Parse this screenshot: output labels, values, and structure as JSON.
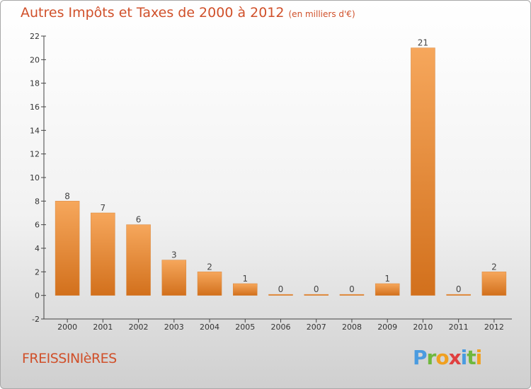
{
  "title": "Autres Impôts et Taxes de 2000 à 2012",
  "unit_label": "(en milliers d'€)",
  "commune": "FREISSINIèRES",
  "logo": {
    "letters": [
      "P",
      "r",
      "o",
      "x",
      "i",
      "t",
      "i"
    ],
    "colors": [
      "#4a9be0",
      "#6fb83d",
      "#f0a020",
      "#e04040",
      "#4a9be0",
      "#6fb83d",
      "#f0a020"
    ]
  },
  "colors": {
    "bar_light": "#f6a75c",
    "bar_dark": "#d2701c",
    "title": "#d0502a",
    "axis": "#444444"
  },
  "chart_data": {
    "type": "bar",
    "title": "Autres Impôts et Taxes de 2000 à 2012",
    "xlabel": "",
    "ylabel": "",
    "categories": [
      "2000",
      "2001",
      "2002",
      "2003",
      "2004",
      "2005",
      "2006",
      "2007",
      "2008",
      "2009",
      "2010",
      "2011",
      "2012"
    ],
    "values": [
      8,
      7,
      6,
      3,
      2,
      1,
      0,
      0,
      0,
      1,
      21,
      0,
      2
    ],
    "data_labels": [
      "8",
      "7",
      "6",
      "3",
      "2",
      "1",
      "0",
      "0",
      "0",
      "1",
      "21",
      "0",
      "2"
    ],
    "ylim": [
      -2,
      22
    ],
    "yticks": [
      "-2",
      "0",
      "2",
      "4",
      "6",
      "8",
      "10",
      "12",
      "14",
      "16",
      "18",
      "20",
      "22"
    ],
    "grid": false,
    "legend": "none"
  }
}
